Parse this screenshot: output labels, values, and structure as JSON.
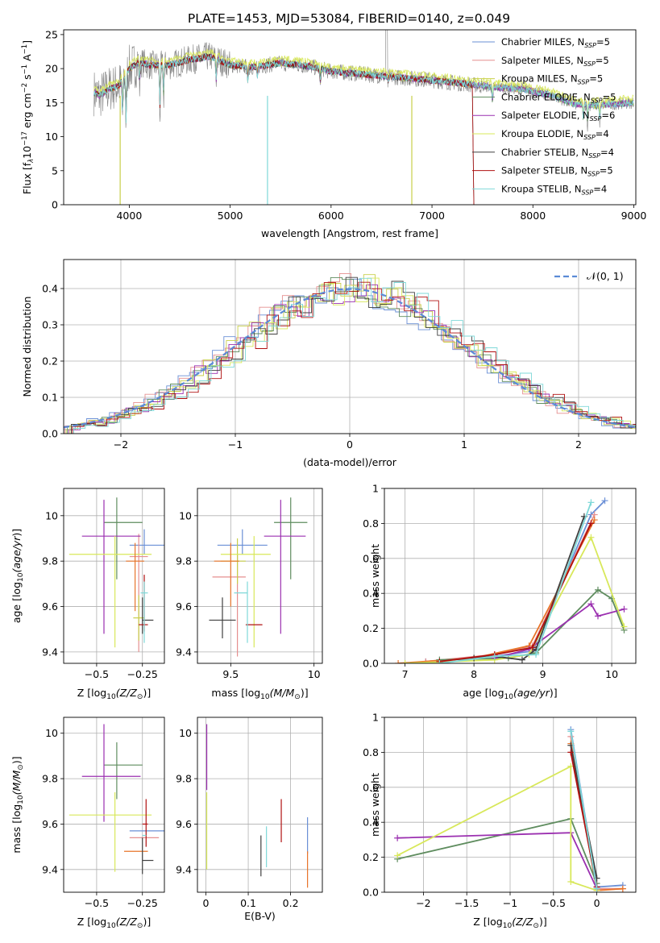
{
  "figure_title": "PLATE=1453, MJD=53084, FIBERID=0140, z=0.049",
  "colors": {
    "Chabrier MILES": "#6a8fd6",
    "Salpeter MILES": "#e58f8f",
    "Kroupa MILES": "#c8cf4a",
    "Chabrier ELODIE": "#5e8c5e",
    "Salpeter ELODIE": "#9b30b0",
    "Kroupa ELODIE": "#d8e85a",
    "Chabrier STELIB": "#404040",
    "Salpeter STELIB": "#b01010",
    "Kroupa STELIB": "#7fd8d8",
    "data": "#808080",
    "normal": "#5b8ad6",
    "orange": "#e8742a"
  },
  "chart_data": [
    {
      "id": "spectrum",
      "type": "line",
      "xlabel": "wavelength [Angstrom, rest frame]",
      "ylabel": "Flux [f",
      "xlim": [
        3350,
        9020
      ],
      "ylim": [
        0,
        25.7
      ],
      "xticks": [
        4000,
        5000,
        6000,
        7000,
        8000,
        9000
      ],
      "yticks": [
        0,
        5,
        10,
        15,
        20,
        25
      ],
      "grid": false,
      "legend_position": "top-right",
      "legend": [
        {
          "name": "Chabrier MILES",
          "n": "5"
        },
        {
          "name": "Salpeter MILES",
          "n": "5"
        },
        {
          "name": "Kroupa MILES",
          "n": "5"
        },
        {
          "name": "Chabrier ELODIE",
          "n": "5"
        },
        {
          "name": "Salpeter ELODIE",
          "n": "6"
        },
        {
          "name": "Kroupa ELODIE",
          "n": "4"
        },
        {
          "name": "Chabrier STELIB",
          "n": "4"
        },
        {
          "name": "Salpeter STELIB",
          "n": "5"
        },
        {
          "name": "Kroupa STELIB",
          "n": "4"
        }
      ],
      "continuum": [
        [
          3650,
          16.5
        ],
        [
          3700,
          16.0
        ],
        [
          3800,
          17.0
        ],
        [
          3900,
          17.5
        ],
        [
          4000,
          20.0
        ],
        [
          4100,
          21.0
        ],
        [
          4200,
          20.5
        ],
        [
          4400,
          20.5
        ],
        [
          4600,
          21.3
        ],
        [
          4800,
          21.8
        ],
        [
          5000,
          20.5
        ],
        [
          5200,
          20.2
        ],
        [
          5500,
          20.8
        ],
        [
          5800,
          20.3
        ],
        [
          6000,
          19.6
        ],
        [
          6300,
          19.2
        ],
        [
          6600,
          18.8
        ],
        [
          7000,
          18.3
        ],
        [
          7300,
          17.8
        ],
        [
          7600,
          17.3
        ],
        [
          7900,
          17.0
        ],
        [
          8200,
          16.0
        ],
        [
          8400,
          14.8
        ],
        [
          8600,
          14.6
        ],
        [
          8800,
          14.8
        ],
        [
          9000,
          15.0
        ]
      ],
      "absorption": [
        [
          3934,
          5
        ],
        [
          3969,
          7
        ],
        [
          4102,
          3
        ],
        [
          4304,
          6
        ],
        [
          4340,
          4
        ],
        [
          4861,
          3
        ],
        [
          5175,
          2
        ],
        [
          5270,
          1.5
        ],
        [
          5893,
          2
        ],
        [
          6563,
          1
        ],
        [
          7600,
          2
        ],
        [
          8500,
          2
        ],
        [
          8542,
          2.5
        ],
        [
          8662,
          2
        ]
      ]
    },
    {
      "id": "residuals",
      "type": "line",
      "xlabel": "(data-model)/error",
      "ylabel": "Normed distribution",
      "xlim": [
        -2.5,
        2.5
      ],
      "ylim": [
        0,
        0.48
      ],
      "xticks": [
        -2,
        -1,
        0,
        1,
        2
      ],
      "yticks": [
        0,
        0.1,
        0.2,
        0.3,
        0.4
      ],
      "grid": true,
      "legend_position": "top-right",
      "normal_label": "𝒩(0, 1)"
    },
    {
      "id": "age-vs-Z",
      "type": "scatter",
      "xlabel": "Z [log",
      "ylabel": "age  [log",
      "xlim": [
        -0.68,
        -0.13
      ],
      "ylim": [
        9.35,
        10.12
      ],
      "xticks": [
        -0.5,
        -0.25
      ],
      "yticks": [
        9.4,
        9.6,
        9.8,
        10.0
      ],
      "grid": true,
      "points": [
        {
          "series": "Chabrier MILES",
          "x": -0.24,
          "y": 9.87,
          "xerr": [
            0.08,
            0.12
          ],
          "yerr": [
            0.04,
            0.07
          ]
        },
        {
          "series": "Salpeter MILES",
          "x": -0.27,
          "y": 9.82,
          "xerr": [
            0.05,
            0.05
          ],
          "yerr": [
            0.42,
            0.1
          ]
        },
        {
          "series": "Kroupa MILES",
          "x": -0.27,
          "y": 9.55,
          "xerr": [
            0.03,
            0.03
          ],
          "yerr": [
            0.1,
            0.1
          ]
        },
        {
          "series": "Chabrier ELODIE",
          "x": -0.39,
          "y": 9.97,
          "xerr": [
            0.07,
            0.14
          ],
          "yerr": [
            0.25,
            0.11
          ]
        },
        {
          "series": "Salpeter ELODIE",
          "x": -0.46,
          "y": 9.91,
          "xerr": [
            0.12,
            0.2
          ],
          "yerr": [
            0.43,
            0.16
          ]
        },
        {
          "series": "Kroupa ELODIE",
          "x": -0.4,
          "y": 9.83,
          "xerr": [
            0.25,
            0.2
          ],
          "yerr": [
            0.41,
            0.08
          ]
        },
        {
          "series": "Chabrier STELIB",
          "x": -0.25,
          "y": 9.54,
          "xerr": [
            0.0,
            0.06
          ],
          "yerr": [
            0.06,
            0.1
          ]
        },
        {
          "series": "Salpeter STELIB",
          "x": -0.24,
          "y": 9.52,
          "xerr": [
            0.03,
            0.02
          ],
          "yerr": [
            0.03,
            0.22
          ]
        },
        {
          "series": "Kroupa STELIB",
          "x": -0.24,
          "y": 9.66,
          "xerr": [
            0.02,
            0.02
          ],
          "yerr": [
            0.22,
            0.05
          ]
        },
        {
          "series": "orange",
          "x": -0.29,
          "y": 9.8,
          "xerr": [
            0.05,
            0.05
          ],
          "yerr": [
            0.22,
            0.08
          ]
        }
      ]
    },
    {
      "id": "age-vs-mass",
      "type": "scatter",
      "xlabel": "mass [log",
      "ylabel": "",
      "xlim": [
        9.3,
        10.05
      ],
      "ylim": [
        9.35,
        10.12
      ],
      "xticks": [
        9.5,
        10.0
      ],
      "yticks": [
        9.4,
        9.6,
        9.8,
        10.0
      ],
      "grid": true,
      "points": [
        {
          "series": "Chabrier MILES",
          "x": 9.57,
          "y": 9.87,
          "xerr": [
            0.15,
            0.15
          ],
          "yerr": [
            0.04,
            0.07
          ]
        },
        {
          "series": "Salpeter MILES",
          "x": 9.54,
          "y": 9.73,
          "xerr": [
            0.15,
            0.05
          ],
          "yerr": [
            0.35,
            0.1
          ]
        },
        {
          "series": "Kroupa MILES",
          "x": 9.54,
          "y": 9.8,
          "xerr": [
            0.1,
            0.05
          ],
          "yerr": [
            0.1,
            0.1
          ]
        },
        {
          "series": "Chabrier ELODIE",
          "x": 9.86,
          "y": 9.97,
          "xerr": [
            0.1,
            0.1
          ],
          "yerr": [
            0.25,
            0.11
          ]
        },
        {
          "series": "Salpeter ELODIE",
          "x": 9.8,
          "y": 9.91,
          "xerr": [
            0.1,
            0.15
          ],
          "yerr": [
            0.43,
            0.16
          ]
        },
        {
          "series": "Kroupa ELODIE",
          "x": 9.64,
          "y": 9.83,
          "xerr": [
            0.2,
            0.1
          ],
          "yerr": [
            0.41,
            0.08
          ]
        },
        {
          "series": "Chabrier STELIB",
          "x": 9.45,
          "y": 9.54,
          "xerr": [
            0.08,
            0.08
          ],
          "yerr": [
            0.08,
            0.1
          ]
        },
        {
          "series": "Salpeter STELIB",
          "x": 9.69,
          "y": 9.52,
          "xerr": [
            0.1,
            0.0
          ],
          "yerr": [
            0.0,
            0.0
          ]
        },
        {
          "series": "Kroupa STELIB",
          "x": 9.6,
          "y": 9.66,
          "xerr": [
            0.08,
            0.0
          ],
          "yerr": [
            0.22,
            0.05
          ]
        },
        {
          "series": "orange",
          "x": 9.5,
          "y": 9.8,
          "xerr": [
            0.1,
            0.05
          ],
          "yerr": [
            0.2,
            0.08
          ]
        }
      ]
    },
    {
      "id": "weight-vs-age",
      "type": "line",
      "xlabel": "age  [log",
      "ylabel": "mass weight",
      "xlim": [
        6.7,
        10.35
      ],
      "ylim": [
        0,
        1
      ],
      "xticks": [
        7,
        8,
        9,
        10
      ],
      "yticks": [
        0,
        0.2,
        0.4,
        0.6,
        0.8,
        1.0
      ],
      "grid": true,
      "series": [
        {
          "name": "Chabrier MILES",
          "x": [
            7.3,
            8.3,
            8.85,
            9.7,
            9.9
          ],
          "y": [
            0.01,
            0.04,
            0.07,
            0.85,
            0.93
          ]
        },
        {
          "name": "Salpeter MILES",
          "x": [
            7.3,
            8.3,
            8.85,
            9.75
          ],
          "y": [
            0.01,
            0.05,
            0.1,
            0.85
          ]
        },
        {
          "name": "orange",
          "x": [
            6.9,
            8.0,
            8.8,
            9.75
          ],
          "y": [
            0.0,
            0.03,
            0.1,
            0.82
          ]
        },
        {
          "name": "Chabrier ELODIE",
          "x": [
            7.5,
            8.5,
            8.9,
            9.8,
            10.0,
            10.18
          ],
          "y": [
            0.02,
            0.03,
            0.06,
            0.42,
            0.37,
            0.19
          ]
        },
        {
          "name": "Salpeter ELODIE",
          "x": [
            8.3,
            8.8,
            9.7,
            9.8,
            10.18
          ],
          "y": [
            0.03,
            0.08,
            0.34,
            0.27,
            0.31
          ]
        },
        {
          "name": "Kroupa ELODIE",
          "x": [
            7.0,
            8.3,
            8.8,
            9.7,
            10.18
          ],
          "y": [
            0.0,
            0.02,
            0.05,
            0.72,
            0.21
          ]
        },
        {
          "name": "Chabrier STELIB",
          "x": [
            8.0,
            8.3,
            8.7,
            8.9,
            9.6
          ],
          "y": [
            0.03,
            0.04,
            0.02,
            0.08,
            0.84
          ]
        },
        {
          "name": "Salpeter STELIB",
          "x": [
            7.5,
            8.3,
            8.85,
            9.7
          ],
          "y": [
            0.01,
            0.05,
            0.09,
            0.8
          ]
        },
        {
          "name": "Kroupa STELIB",
          "x": [
            7.5,
            8.3,
            8.9,
            9.7
          ],
          "y": [
            0.0,
            0.04,
            0.05,
            0.92
          ]
        }
      ]
    },
    {
      "id": "mass-vs-Z",
      "type": "scatter",
      "xlabel": "Z [log",
      "ylabel": "mass [log",
      "xlim": [
        -0.68,
        -0.13
      ],
      "ylim": [
        9.3,
        10.07
      ],
      "xticks": [
        -0.5,
        -0.25
      ],
      "yticks": [
        9.4,
        9.6,
        9.8,
        10.0
      ],
      "grid": true,
      "points": [
        {
          "series": "Chabrier MILES",
          "x": -0.24,
          "y": 9.57,
          "xerr": [
            0.08,
            0.12
          ],
          "yerr": [
            0.0,
            0.0
          ]
        },
        {
          "series": "Salpeter MILES",
          "x": -0.24,
          "y": 9.54,
          "xerr": [
            0.08,
            0.08
          ],
          "yerr": [
            0.0,
            0.0
          ]
        },
        {
          "series": "orange",
          "x": -0.27,
          "y": 9.48,
          "xerr": [
            0.08,
            0.05
          ],
          "yerr": [
            0.0,
            0.0
          ]
        },
        {
          "series": "Chabrier ELODIE",
          "x": -0.39,
          "y": 9.86,
          "xerr": [
            0.07,
            0.14
          ],
          "yerr": [
            0.15,
            0.1
          ]
        },
        {
          "series": "Salpeter ELODIE",
          "x": -0.46,
          "y": 9.81,
          "xerr": [
            0.12,
            0.2
          ],
          "yerr": [
            0.2,
            0.23
          ]
        },
        {
          "series": "Kroupa ELODIE",
          "x": -0.4,
          "y": 9.64,
          "xerr": [
            0.25,
            0.2
          ],
          "yerr": [
            0.25,
            0.1
          ]
        },
        {
          "series": "Chabrier STELIB",
          "x": -0.25,
          "y": 9.44,
          "xerr": [
            0.0,
            0.06
          ],
          "yerr": [
            0.06,
            0.1
          ]
        },
        {
          "series": "Salpeter STELIB",
          "x": -0.23,
          "y": 9.6,
          "xerr": [
            0.02,
            0.01
          ],
          "yerr": [
            0.1,
            0.11
          ]
        },
        {
          "series": "Kroupa STELIB",
          "x": -0.23,
          "y": 9.55,
          "xerr": [
            0.02,
            0.0
          ],
          "yerr": [
            0.0,
            0.0
          ]
        }
      ]
    },
    {
      "id": "mass-vs-ebv",
      "type": "scatter",
      "xlabel": "E(B-V)",
      "ylabel": "",
      "xlim": [
        -0.02,
        0.275
      ],
      "ylim": [
        9.3,
        10.07
      ],
      "xticks": [
        0.0,
        0.1,
        0.2
      ],
      "yticks": [
        9.4,
        9.6,
        9.8,
        10.0
      ],
      "grid": true,
      "points": [
        {
          "series": "Salpeter ELODIE",
          "x": 0.002,
          "y": 9.9,
          "yerr": [
            0.15,
            0.14
          ]
        },
        {
          "series": "Kroupa ELODIE",
          "x": 0.002,
          "y": 9.57,
          "yerr": [
            0.17,
            0.17
          ]
        },
        {
          "series": "Chabrier STELIB",
          "x": 0.13,
          "y": 9.45,
          "yerr": [
            0.08,
            0.1
          ]
        },
        {
          "series": "Kroupa STELIB",
          "x": 0.143,
          "y": 9.5,
          "yerr": [
            0.09,
            0.09
          ]
        },
        {
          "series": "Salpeter STELIB",
          "x": 0.178,
          "y": 9.62,
          "yerr": [
            0.1,
            0.09
          ]
        },
        {
          "series": "Chabrier MILES",
          "x": 0.24,
          "y": 9.55,
          "yerr": [
            0.08,
            0.08
          ]
        },
        {
          "series": "orange",
          "x": 0.24,
          "y": 9.4,
          "yerr": [
            0.08,
            0.08
          ]
        }
      ]
    },
    {
      "id": "weight-vs-Z",
      "type": "line",
      "xlabel": "Z [log",
      "ylabel": "mass weight",
      "xlim": [
        -2.45,
        0.45
      ],
      "ylim": [
        0,
        1
      ],
      "xticks": [
        -2.0,
        -1.5,
        -1.0,
        -0.5,
        0.0
      ],
      "yticks": [
        0,
        0.2,
        0.4,
        0.6,
        0.8,
        1.0
      ],
      "grid": true,
      "series": [
        {
          "name": "Chabrier MILES",
          "x": [
            -0.3,
            0.0,
            0.3
          ],
          "y": [
            0.93,
            0.03,
            0.04
          ]
        },
        {
          "name": "Salpeter MILES",
          "x": [
            -0.3,
            0.0,
            0.3
          ],
          "y": [
            0.89,
            0.02,
            0.02
          ]
        },
        {
          "name": "orange",
          "x": [
            -0.3,
            0.0,
            0.3
          ],
          "y": [
            0.85,
            0.01,
            0.02
          ]
        },
        {
          "name": "Chabrier ELODIE",
          "x": [
            -2.3,
            -0.3,
            0.0
          ],
          "y": [
            0.19,
            0.42,
            0.05
          ]
        },
        {
          "name": "Salpeter ELODIE",
          "x": [
            -2.3,
            -0.3,
            0.0
          ],
          "y": [
            0.31,
            0.34,
            0.02
          ]
        },
        {
          "name": "Kroupa ELODIE",
          "x": [
            -2.3,
            -0.3,
            -0.3,
            0.0
          ],
          "y": [
            0.21,
            0.72,
            0.06,
            0.01
          ]
        },
        {
          "name": "Chabrier STELIB",
          "x": [
            -0.3,
            0.0
          ],
          "y": [
            0.84,
            0.08
          ]
        },
        {
          "name": "Salpeter STELIB",
          "x": [
            -0.3,
            0.0
          ],
          "y": [
            0.8,
            0.03
          ]
        },
        {
          "name": "Kroupa STELIB",
          "x": [
            -0.3,
            0.0
          ],
          "y": [
            0.92,
            0.02
          ]
        }
      ]
    }
  ]
}
